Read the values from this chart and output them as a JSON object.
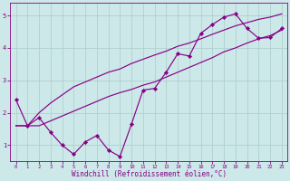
{
  "bg_color": "#cce8e8",
  "grid_color": "#aacccc",
  "line_color": "#880088",
  "xlabel": "Windchill (Refroidissement éolien,°C)",
  "xlim": [
    -0.5,
    23.5
  ],
  "ylim": [
    0.5,
    5.4
  ],
  "yticks": [
    1,
    2,
    3,
    4,
    5
  ],
  "xticks": [
    0,
    1,
    2,
    3,
    4,
    5,
    6,
    7,
    8,
    9,
    10,
    11,
    12,
    13,
    14,
    15,
    16,
    17,
    18,
    19,
    20,
    21,
    22,
    23
  ],
  "main_x": [
    0,
    1,
    2,
    3,
    4,
    5,
    6,
    7,
    8,
    9,
    10,
    11,
    12,
    13,
    14,
    15,
    16,
    17,
    18,
    19,
    20,
    21,
    22,
    23
  ],
  "main_y": [
    2.4,
    1.6,
    1.85,
    1.4,
    1.0,
    0.72,
    1.1,
    1.3,
    0.85,
    0.65,
    1.65,
    2.7,
    2.75,
    3.25,
    3.82,
    3.75,
    4.45,
    4.72,
    4.95,
    5.05,
    4.6,
    4.3,
    4.32,
    4.6
  ],
  "lo_x": [
    0,
    1,
    2,
    3,
    4,
    5,
    6,
    7,
    8,
    9,
    10,
    11,
    12,
    13,
    14,
    15,
    16,
    17,
    18,
    19,
    20,
    21,
    22,
    23
  ],
  "lo_y": [
    1.6,
    1.6,
    1.6,
    1.75,
    1.9,
    2.05,
    2.2,
    2.35,
    2.5,
    2.62,
    2.72,
    2.85,
    2.95,
    3.1,
    3.25,
    3.4,
    3.55,
    3.7,
    3.88,
    4.0,
    4.15,
    4.28,
    4.38,
    4.55
  ],
  "hi_x": [
    0,
    1,
    2,
    3,
    4,
    5,
    6,
    7,
    8,
    9,
    10,
    11,
    12,
    13,
    14,
    15,
    16,
    17,
    18,
    19,
    20,
    21,
    22,
    23
  ],
  "hi_y": [
    1.6,
    1.6,
    2.0,
    2.3,
    2.55,
    2.8,
    2.95,
    3.1,
    3.25,
    3.35,
    3.52,
    3.65,
    3.78,
    3.9,
    4.05,
    4.15,
    4.28,
    4.42,
    4.55,
    4.68,
    4.78,
    4.88,
    4.95,
    5.05
  ]
}
